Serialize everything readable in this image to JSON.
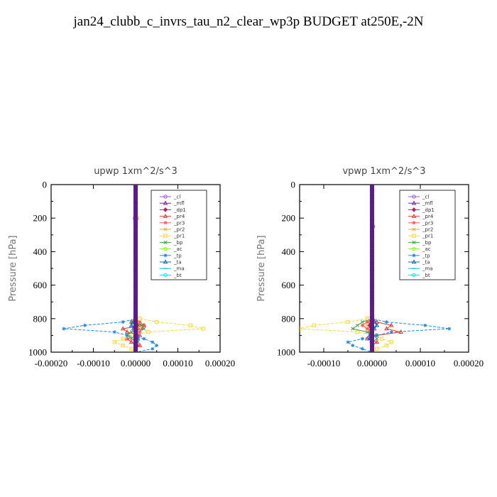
{
  "title": "jan24_clubb_c_invrs_tau_n2_clear_wp3p  BUDGET at250E,-2N",
  "legend_items": [
    {
      "label": "_cl",
      "color": "#9b59d0",
      "marker": "circle"
    },
    {
      "label": "_mfl",
      "color": "#7a1fa2",
      "marker": "tri"
    },
    {
      "label": "_dp1",
      "color": "#c2185b",
      "marker": "diamond"
    },
    {
      "label": "_pr4",
      "color": "#e53935",
      "marker": "tri"
    },
    {
      "label": "_pr3",
      "color": "#ff5252",
      "marker": "star"
    },
    {
      "label": "_pr2",
      "color": "#ffa726",
      "marker": "x"
    },
    {
      "label": "_pr1",
      "color": "#fdd835",
      "marker": "square"
    },
    {
      "label": "_bp",
      "color": "#43a047",
      "marker": "x"
    },
    {
      "label": "_ac",
      "color": "#76ff03",
      "marker": "circle"
    },
    {
      "label": "_tp",
      "color": "#1e88e5",
      "marker": "star"
    },
    {
      "label": "_ta",
      "color": "#1565c0",
      "marker": "tri"
    },
    {
      "label": "_ma",
      "color": "#00bcd4",
      "marker": "dash"
    },
    {
      "label": "_bt",
      "color": "#00e5ff",
      "marker": "circle"
    }
  ],
  "chart_data": [
    {
      "type": "line",
      "title": "upwp   1xm^2/s^3",
      "ylabel": "Pressure [hPa]",
      "xlim": [
        -0.0002,
        0.0002
      ],
      "ylim": [
        1000,
        0
      ],
      "xticks": [
        "-0.00020",
        "-0.00010",
        "0.00000",
        "0.00010",
        "0.00020"
      ],
      "yticks": [
        "0",
        "200",
        "400",
        "600",
        "800",
        "1000"
      ],
      "legend_position": "top-right",
      "pressure": [
        0,
        50,
        100,
        150,
        200,
        250,
        300,
        350,
        400,
        450,
        500,
        550,
        600,
        650,
        700,
        750,
        780,
        800,
        820,
        840,
        860,
        880,
        900,
        920,
        940,
        960,
        980,
        1000
      ],
      "series": [
        {
          "name": "_cl",
          "values": [
            0,
            0,
            0,
            0,
            0,
            0,
            0,
            0,
            0,
            0,
            0,
            0,
            0,
            0,
            0,
            0,
            0,
            0,
            0,
            0,
            0,
            0,
            0,
            0,
            0,
            0,
            0,
            0
          ]
        },
        {
          "name": "_mfl",
          "values": [
            0,
            0,
            0,
            0,
            0,
            0,
            0,
            0,
            0,
            0,
            0,
            0,
            0,
            0,
            0,
            0,
            0,
            0,
            0,
            0,
            0,
            0,
            0,
            0,
            0,
            0,
            0,
            0
          ]
        },
        {
          "name": "_dp1",
          "values": [
            0,
            0,
            0,
            0,
            0,
            0,
            0,
            0,
            0,
            0,
            0,
            0,
            0,
            0,
            0,
            0,
            0,
            0,
            4e-06,
            8e-06,
            5e-06,
            2e-06,
            3e-06,
            4e-06,
            3e-06,
            2e-06,
            1e-06,
            0
          ]
        },
        {
          "name": "_pr4",
          "values": [
            0,
            0,
            0,
            0,
            0,
            0,
            0,
            0,
            0,
            0,
            0,
            0,
            0,
            0,
            0,
            0,
            0,
            0,
            -1e-05,
            2e-05,
            -3e-05,
            -2e-05,
            1e-05,
            -2e-05,
            -1e-05,
            1e-05,
            0,
            0
          ]
        },
        {
          "name": "_pr3",
          "values": [
            0,
            0,
            0,
            0,
            2e-06,
            0,
            0,
            0,
            0,
            0,
            0,
            0,
            0,
            0,
            0,
            0,
            0,
            0,
            1e-05,
            2e-05,
            1.5e-05,
            1e-05,
            5e-06,
            5e-06,
            0,
            0,
            0,
            0
          ]
        },
        {
          "name": "_pr2",
          "values": [
            0,
            0,
            0,
            0,
            5e-06,
            2e-06,
            0,
            0,
            0,
            0,
            0,
            0,
            0,
            0,
            0,
            0,
            0,
            0,
            5e-06,
            1e-05,
            5e-06,
            0,
            0,
            0,
            0,
            0,
            0,
            0
          ]
        },
        {
          "name": "_pr1",
          "values": [
            0,
            0,
            0,
            0,
            0,
            0,
            0,
            0,
            0,
            0,
            0,
            0,
            0,
            0,
            0,
            0,
            0,
            1e-05,
            5e-05,
            0.00013,
            0.00016,
            3e-05,
            -1e-05,
            -3e-05,
            -5e-05,
            -3e-05,
            -1e-05,
            0
          ]
        },
        {
          "name": "_bp",
          "values": [
            0,
            0,
            0,
            0,
            0,
            0,
            0,
            0,
            0,
            0,
            0,
            0,
            0,
            0,
            0,
            0,
            0,
            0,
            -1e-05,
            1.5e-05,
            2e-05,
            -1e-05,
            -2e-05,
            -1e-05,
            5e-06,
            0,
            0,
            0
          ]
        },
        {
          "name": "_ac",
          "values": [
            0,
            0,
            0,
            0,
            0,
            0,
            0,
            0,
            0,
            0,
            0,
            0,
            0,
            0,
            0,
            0,
            0,
            0,
            0,
            0,
            0,
            0,
            0,
            0,
            0,
            0,
            0,
            0
          ]
        },
        {
          "name": "_tp",
          "values": [
            0,
            0,
            0,
            0,
            -3e-06,
            0,
            0,
            0,
            0,
            0,
            0,
            0,
            0,
            0,
            0,
            0,
            0,
            0,
            -3e-05,
            -0.00012,
            -0.00017,
            -5e-05,
            -2e-05,
            2e-05,
            4e-05,
            5e-05,
            4e-05,
            0
          ]
        },
        {
          "name": "_ta",
          "values": [
            0,
            0,
            0,
            0,
            0,
            0,
            0,
            0,
            0,
            0,
            0,
            0,
            0,
            0,
            0,
            0,
            0,
            0,
            -5e-06,
            -1e-05,
            -5e-06,
            0,
            5e-06,
            5e-06,
            0,
            0,
            0,
            0
          ]
        },
        {
          "name": "_ma",
          "values": [
            0,
            0,
            0,
            0,
            0,
            0,
            0,
            0,
            0,
            0,
            0,
            0,
            0,
            0,
            0,
            0,
            0,
            0,
            0,
            0,
            0,
            0,
            0,
            0,
            0,
            0,
            0,
            0
          ]
        },
        {
          "name": "_bt",
          "values": [
            0,
            0,
            0,
            0,
            0,
            0,
            0,
            0,
            0,
            0,
            0,
            0,
            0,
            0,
            0,
            0,
            0,
            0,
            0,
            0,
            0,
            0,
            0,
            0,
            0,
            0,
            0,
            0
          ]
        }
      ]
    },
    {
      "type": "line",
      "title": "vpwp   1xm^2/s^3",
      "ylabel": "Pressure [hPa]",
      "xlim": [
        -0.00015,
        0.0002
      ],
      "ylim": [
        1000,
        0
      ],
      "xticks": [
        "-0.00010",
        "0.00000",
        "0.00010",
        "0.00020"
      ],
      "yticks": [
        "0",
        "200",
        "400",
        "600",
        "800",
        "1000"
      ],
      "legend_position": "top-right",
      "pressure": [
        0,
        50,
        100,
        150,
        200,
        250,
        300,
        350,
        400,
        450,
        500,
        550,
        600,
        650,
        700,
        750,
        780,
        800,
        820,
        840,
        860,
        880,
        900,
        920,
        940,
        960,
        980,
        1000
      ],
      "series": [
        {
          "name": "_cl",
          "values": [
            0,
            0,
            0,
            0,
            0,
            0,
            0,
            0,
            0,
            0,
            0,
            0,
            0,
            0,
            0,
            0,
            0,
            0,
            0,
            0,
            0,
            0,
            0,
            0,
            0,
            0,
            0,
            0
          ]
        },
        {
          "name": "_mfl",
          "values": [
            0,
            0,
            0,
            0,
            0,
            0,
            0,
            0,
            0,
            0,
            0,
            0,
            0,
            0,
            0,
            0,
            0,
            0,
            0,
            0,
            0,
            0,
            0,
            0,
            0,
            0,
            0,
            0
          ]
        },
        {
          "name": "_dp1",
          "values": [
            0,
            0,
            0,
            0,
            0,
            0,
            0,
            0,
            0,
            0,
            0,
            0,
            0,
            0,
            0,
            0,
            0,
            0,
            -4e-06,
            -6e-06,
            -4e-06,
            -2e-06,
            -2e-06,
            -2e-06,
            -1e-06,
            0,
            0,
            0
          ]
        },
        {
          "name": "_pr4",
          "values": [
            0,
            0,
            0,
            0,
            0,
            0,
            0,
            0,
            0,
            0,
            0,
            0,
            0,
            0,
            0,
            0,
            0,
            0,
            1e-05,
            4e-05,
            3e-05,
            6e-05,
            1e-05,
            -1e-05,
            1e-05,
            0,
            0,
            0
          ]
        },
        {
          "name": "_pr3",
          "values": [
            0,
            0,
            0,
            0,
            0,
            0,
            0,
            0,
            0,
            0,
            0,
            0,
            0,
            0,
            0,
            0,
            0,
            0,
            -1e-05,
            -2e-05,
            -1e-05,
            -5e-06,
            0,
            0,
            0,
            0,
            0,
            0
          ]
        },
        {
          "name": "_pr2",
          "values": [
            0,
            0,
            0,
            0,
            0,
            3e-06,
            0,
            0,
            0,
            0,
            0,
            0,
            0,
            0,
            0,
            0,
            0,
            0,
            -5e-06,
            -1e-05,
            -5e-06,
            0,
            0,
            0,
            0,
            0,
            0,
            0
          ]
        },
        {
          "name": "_pr1",
          "values": [
            0,
            0,
            0,
            0,
            0,
            0,
            0,
            0,
            0,
            0,
            0,
            0,
            0,
            0,
            0,
            0,
            0,
            -1e-05,
            -5e-05,
            -0.00012,
            -0.00015,
            -3e-05,
            1e-05,
            2e-05,
            4e-05,
            3e-05,
            1e-05,
            0
          ]
        },
        {
          "name": "_bp",
          "values": [
            0,
            0,
            0,
            0,
            0,
            0,
            0,
            0,
            0,
            0,
            0,
            0,
            0,
            0,
            0,
            0,
            0,
            0,
            -2e-05,
            -3e-05,
            -4e-05,
            -1e-05,
            5e-06,
            1e-05,
            0,
            0,
            0,
            0
          ]
        },
        {
          "name": "_ac",
          "values": [
            0,
            0,
            0,
            0,
            0,
            0,
            0,
            0,
            0,
            0,
            0,
            0,
            0,
            0,
            0,
            0,
            0,
            0,
            0,
            0,
            0,
            0,
            0,
            0,
            0,
            0,
            0,
            0
          ]
        },
        {
          "name": "_tp",
          "values": [
            0,
            0,
            0,
            0,
            0,
            3e-06,
            0,
            0,
            0,
            0,
            0,
            0,
            0,
            0,
            0,
            0,
            0,
            0,
            3e-05,
            0.00011,
            0.00016,
            4e-05,
            1e-05,
            -2e-05,
            -5e-05,
            -4e-05,
            -2e-05,
            0
          ]
        },
        {
          "name": "_ta",
          "values": [
            0,
            0,
            0,
            0,
            0,
            0,
            0,
            0,
            0,
            0,
            0,
            0,
            0,
            0,
            0,
            0,
            0,
            0,
            5e-06,
            1e-05,
            5e-06,
            0,
            -5e-06,
            -5e-06,
            0,
            0,
            0,
            0
          ]
        },
        {
          "name": "_ma",
          "values": [
            0,
            0,
            0,
            0,
            0,
            0,
            0,
            0,
            0,
            0,
            0,
            0,
            0,
            0,
            0,
            0,
            0,
            0,
            0,
            0,
            0,
            0,
            0,
            0,
            0,
            0,
            0,
            0
          ]
        },
        {
          "name": "_bt",
          "values": [
            0,
            0,
            0,
            0,
            0,
            0,
            0,
            0,
            0,
            0,
            0,
            0,
            0,
            0,
            0,
            0,
            0,
            0,
            0,
            0,
            0,
            0,
            0,
            0,
            0,
            0,
            0,
            0
          ]
        }
      ]
    }
  ]
}
